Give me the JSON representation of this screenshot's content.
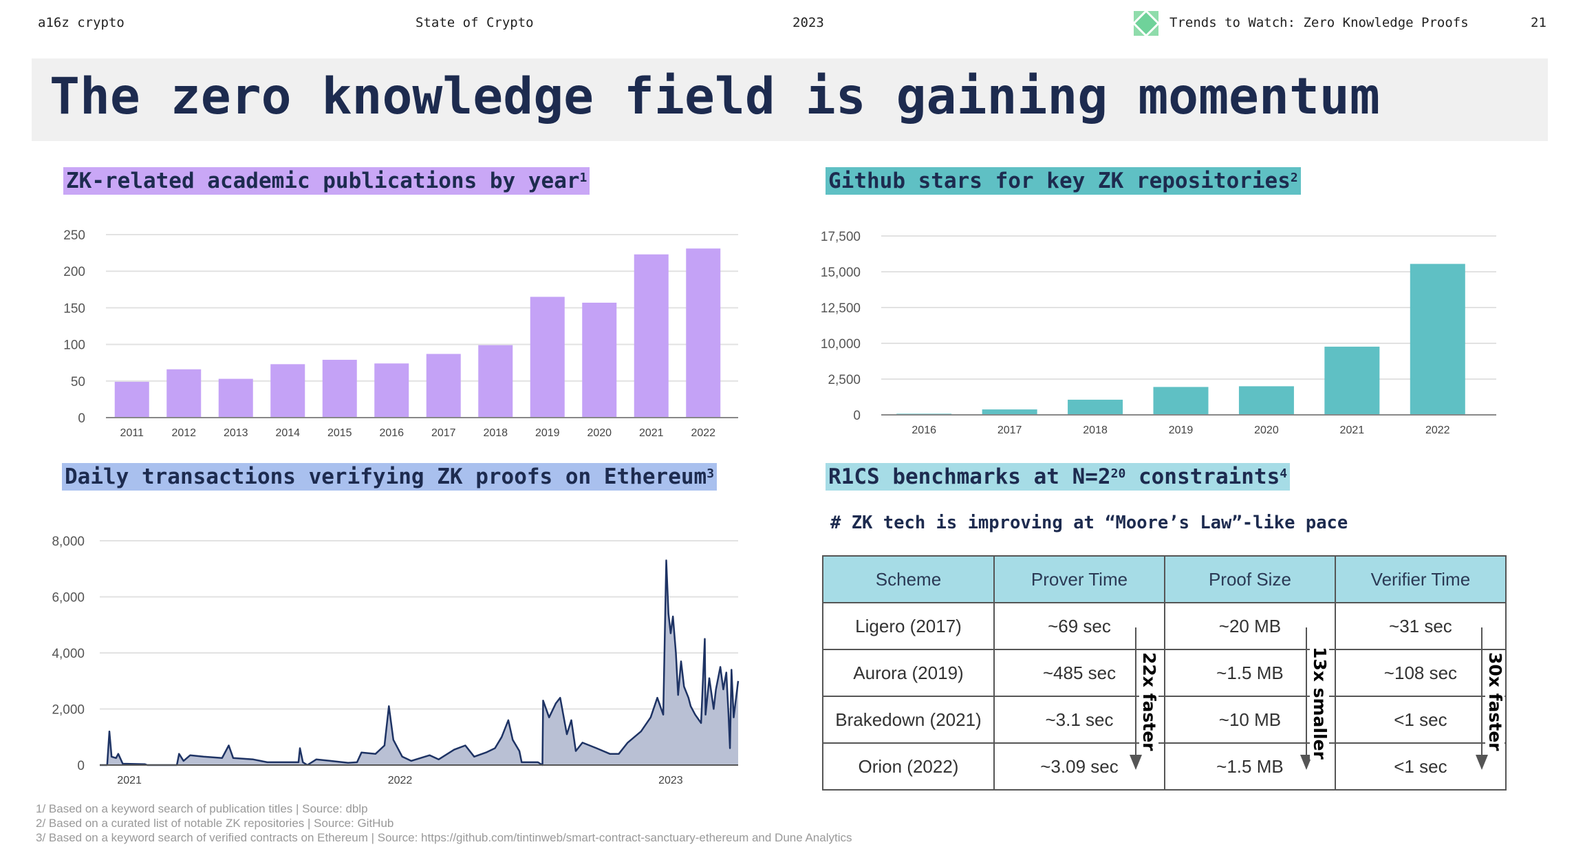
{
  "header": {
    "brand": "a16z crypto",
    "report": "State of Crypto",
    "year": "2023",
    "section": "Trends to Watch: Zero Knowledge Proofs",
    "section_icon": "green-diamond-icon",
    "page_number": "21"
  },
  "title": "The zero knowledge field is gaining momentum",
  "colors": {
    "title": "#1d2b4f",
    "purple": "#c4a2f6",
    "teal": "#5fc0c4",
    "blue_label": "#a9c0ee",
    "line": "#1e3364",
    "line_fill": "#b9c0d4",
    "table_header": "#a6dce6"
  },
  "chart_data": [
    {
      "type": "bar",
      "title": "ZK-related academic publications by year",
      "footnote_ref": "1",
      "categories": [
        "2011",
        "2012",
        "2013",
        "2014",
        "2015",
        "2016",
        "2017",
        "2018",
        "2019",
        "2020",
        "2021",
        "2022"
      ],
      "values": [
        49,
        66,
        53,
        73,
        79,
        74,
        87,
        99,
        165,
        157,
        223,
        231
      ],
      "yticks": [
        "0",
        "50",
        "100",
        "150",
        "200",
        "250"
      ],
      "ylim": [
        0,
        250
      ],
      "grid": true,
      "color": "#c4a2f6"
    },
    {
      "type": "bar",
      "title": "Github stars for key ZK repositories",
      "footnote_ref": "2",
      "categories": [
        "2016",
        "2017",
        "2018",
        "2019",
        "2020",
        "2021",
        "2022"
      ],
      "values": [
        80,
        380,
        1060,
        1950,
        2000,
        9300,
        15550
      ],
      "yticks": [
        "0",
        "2,500",
        "10,000",
        "12,500",
        "15,000",
        "17,500"
      ],
      "ytick_values": [
        0,
        2500,
        10000,
        12500,
        15000,
        17500
      ],
      "grid": true,
      "color": "#5fc0c4"
    },
    {
      "type": "area",
      "title": "Daily transactions verifying ZK proofs on Ethereum",
      "footnote_ref": "3",
      "xticks": [
        "2021",
        "2022",
        "2023"
      ],
      "xlim": [
        "2020-11-22",
        "2023-04-02"
      ],
      "yticks": [
        "0",
        "2,000",
        "4,000",
        "6,000",
        "8,000"
      ],
      "ylim": [
        0,
        8000
      ],
      "grid": true,
      "points": [
        [
          "2020-11-22",
          0
        ],
        [
          "2020-12-02",
          0
        ],
        [
          "2020-12-05",
          1200
        ],
        [
          "2020-12-08",
          300
        ],
        [
          "2020-12-14",
          250
        ],
        [
          "2020-12-17",
          400
        ],
        [
          "2020-12-23",
          50
        ],
        [
          "2021-01-22",
          30
        ],
        [
          "2021-01-25",
          0
        ],
        [
          "2021-03-06",
          0
        ],
        [
          "2021-03-09",
          400
        ],
        [
          "2021-03-15",
          150
        ],
        [
          "2021-03-24",
          350
        ],
        [
          "2021-04-11",
          300
        ],
        [
          "2021-05-06",
          250
        ],
        [
          "2021-05-15",
          700
        ],
        [
          "2021-05-21",
          250
        ],
        [
          "2021-06-17",
          200
        ],
        [
          "2021-07-06",
          100
        ],
        [
          "2021-08-17",
          100
        ],
        [
          "2021-08-19",
          600
        ],
        [
          "2021-08-23",
          100
        ],
        [
          "2021-08-29",
          0
        ],
        [
          "2021-09-10",
          200
        ],
        [
          "2021-09-29",
          150
        ],
        [
          "2021-10-23",
          80
        ],
        [
          "2021-11-04",
          100
        ],
        [
          "2021-11-10",
          450
        ],
        [
          "2021-11-29",
          400
        ],
        [
          "2021-12-11",
          700
        ],
        [
          "2021-12-17",
          2100
        ],
        [
          "2021-12-23",
          900
        ],
        [
          "2022-01-04",
          300
        ],
        [
          "2022-01-16",
          150
        ],
        [
          "2022-02-10",
          350
        ],
        [
          "2022-02-22",
          200
        ],
        [
          "2022-03-15",
          550
        ],
        [
          "2022-03-30",
          700
        ],
        [
          "2022-04-11",
          300
        ],
        [
          "2022-04-27",
          450
        ],
        [
          "2022-05-09",
          600
        ],
        [
          "2022-05-18",
          1000
        ],
        [
          "2022-05-27",
          1600
        ],
        [
          "2022-06-02",
          900
        ],
        [
          "2022-06-11",
          500
        ],
        [
          "2022-06-14",
          100
        ],
        [
          "2022-07-06",
          100
        ],
        [
          "2022-07-12",
          0
        ],
        [
          "2022-07-13",
          2300
        ],
        [
          "2022-07-21",
          1700
        ],
        [
          "2022-07-30",
          2200
        ],
        [
          "2022-08-05",
          2400
        ],
        [
          "2022-08-14",
          1100
        ],
        [
          "2022-08-20",
          1600
        ],
        [
          "2022-08-26",
          500
        ],
        [
          "2022-09-04",
          800
        ],
        [
          "2022-09-23",
          600
        ],
        [
          "2022-10-11",
          400
        ],
        [
          "2022-10-23",
          400
        ],
        [
          "2022-11-04",
          800
        ],
        [
          "2022-11-22",
          1200
        ],
        [
          "2022-12-05",
          1700
        ],
        [
          "2022-12-14",
          2400
        ],
        [
          "2022-12-22",
          1800
        ],
        [
          "2022-12-26",
          7300
        ],
        [
          "2022-12-29",
          5400
        ],
        [
          "2023-01-01",
          4700
        ],
        [
          "2023-01-04",
          5300
        ],
        [
          "2023-01-08",
          4000
        ],
        [
          "2023-01-11",
          2500
        ],
        [
          "2023-01-15",
          3700
        ],
        [
          "2023-01-19",
          2800
        ],
        [
          "2023-01-25",
          2400
        ],
        [
          "2023-01-28",
          2100
        ],
        [
          "2023-02-03",
          1800
        ],
        [
          "2023-02-11",
          1500
        ],
        [
          "2023-02-16",
          4500
        ],
        [
          "2023-02-17",
          1800
        ],
        [
          "2023-02-22",
          3100
        ],
        [
          "2023-02-28",
          2000
        ],
        [
          "2023-03-03",
          2700
        ],
        [
          "2023-03-09",
          3500
        ],
        [
          "2023-03-13",
          2700
        ],
        [
          "2023-03-17",
          3300
        ],
        [
          "2023-03-20",
          1800
        ],
        [
          "2023-03-22",
          600
        ],
        [
          "2023-03-24",
          3400
        ],
        [
          "2023-03-27",
          1700
        ],
        [
          "2023-04-02",
          3000
        ]
      ],
      "color": "#1e3364"
    }
  ],
  "benchmarks": {
    "title_prefix": "R1CS benchmarks at N=2",
    "title_exponent": "20",
    "title_suffix": " constraints",
    "footnote_ref": "4",
    "subtitle": "# ZK tech is improving at “Moore’s Law”-like pace",
    "columns": [
      "Scheme",
      "Prover Time",
      "Proof Size",
      "Verifier Time"
    ],
    "rows": [
      [
        "Ligero (2017)",
        "~69 sec",
        "~20 MB",
        "~31 sec"
      ],
      [
        "Aurora (2019)",
        "~485 sec",
        "~1.5 MB",
        "~108 sec"
      ],
      [
        "Brakedown (2021)",
        "~3.1 sec",
        "~10 MB",
        "<1 sec"
      ],
      [
        "Orion (2022)",
        "~3.09 sec",
        "~1.5 MB",
        "<1 sec"
      ]
    ],
    "annotations": [
      "22x faster",
      "13x smaller",
      "30x faster"
    ]
  },
  "footnotes": [
    "1/ Based on a keyword search of publication titles | Source: dblp",
    "2/ Based on a curated list of notable ZK repositories | Source: GitHub",
    "3/ Based on a keyword search of verified contracts on Ethereum | Source: https://github.com/tintinweb/smart-contract-sanctuary-ethereum and Dune Analytics"
  ]
}
